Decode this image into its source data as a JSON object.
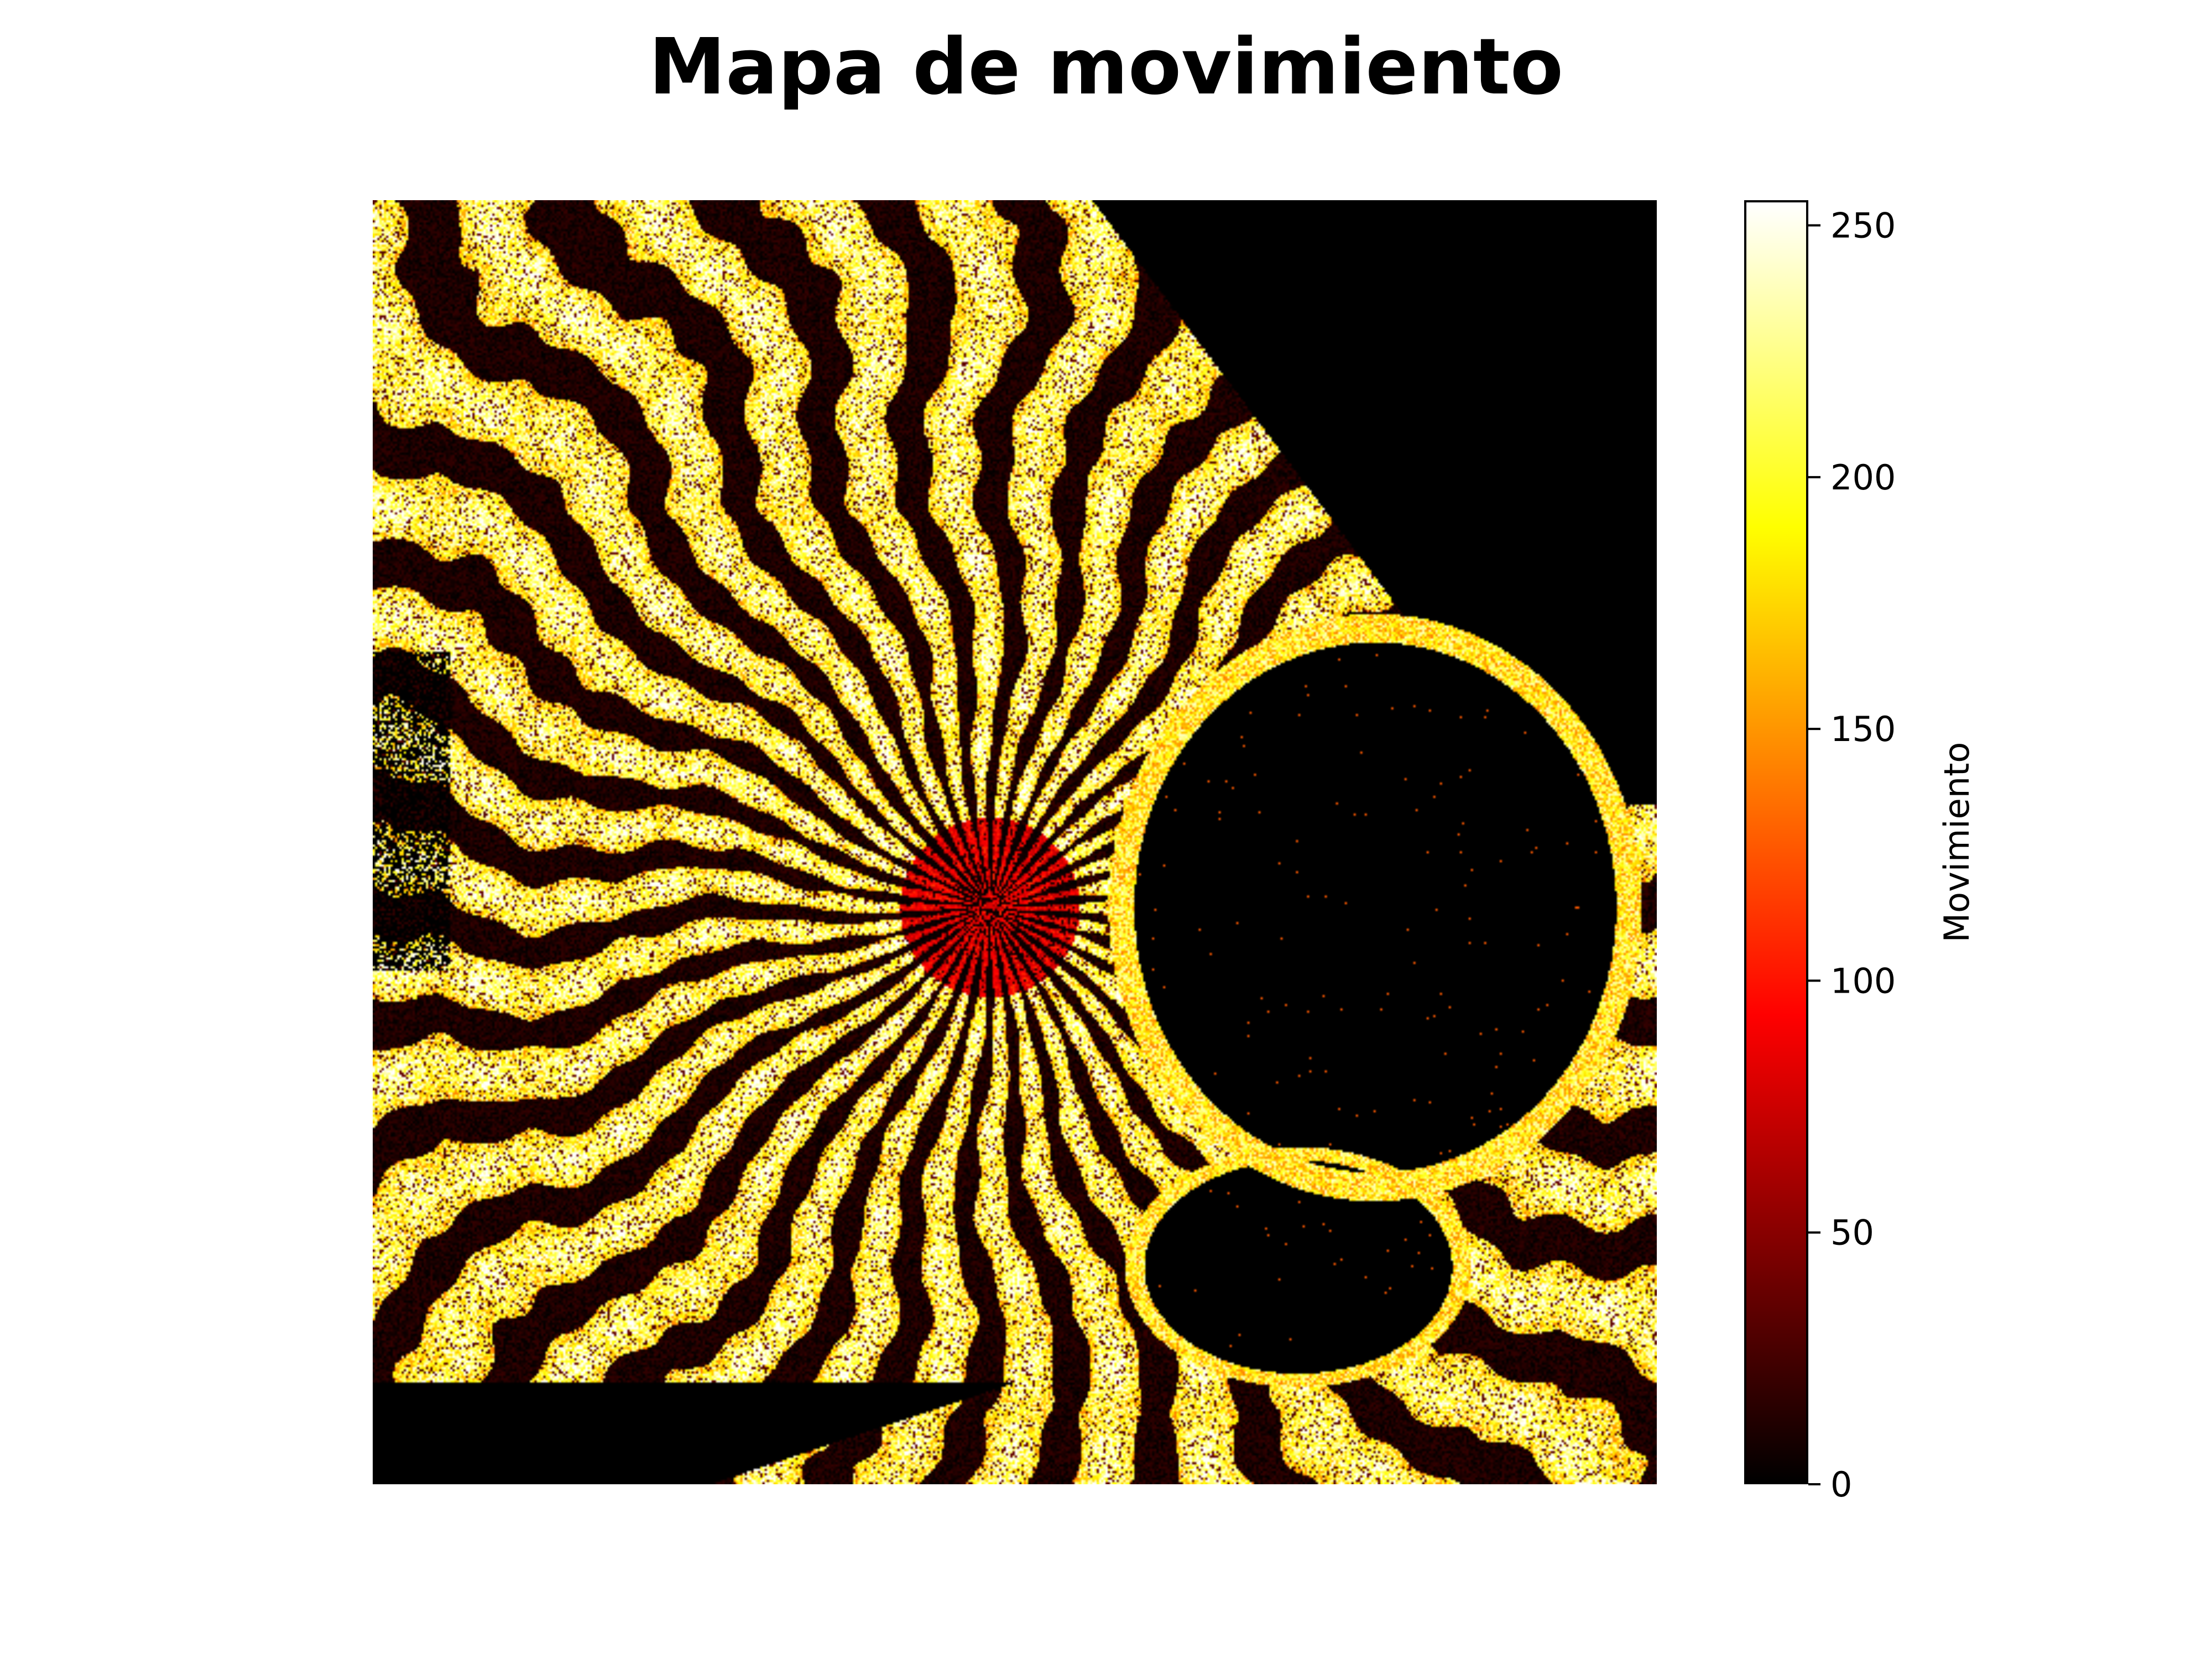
{
  "chart_data": {
    "type": "heatmap",
    "title": "Mapa de movimiento",
    "colormap": "hot",
    "colors": [
      "#000000",
      "#ff0000",
      "#ffff00",
      "#ffffff"
    ],
    "value_range": [
      0,
      255
    ],
    "colorbar": {
      "label": "Movimiento",
      "ticks": [
        0,
        50,
        100,
        150,
        200,
        250
      ],
      "tick_labels": [
        "0",
        "50",
        "100",
        "150",
        "200",
        "250"
      ]
    },
    "axes_visible": false,
    "grid": false
  }
}
